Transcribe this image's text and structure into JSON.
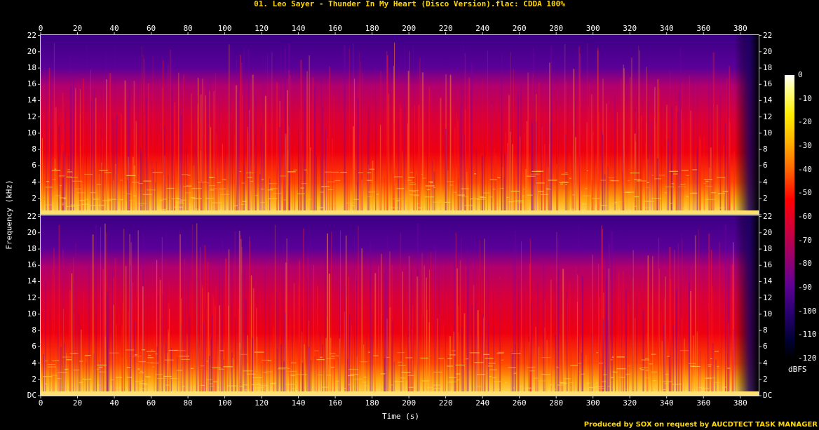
{
  "title": "01. Leo Sayer - Thunder In My Heart (Disco Version).flac: CDDA 100%",
  "credit": "Produced by SOX on request by AUCDTECT TASK MANAGER",
  "chart_data": {
    "type": "heatmap",
    "title": "01. Leo Sayer - Thunder In My Heart (Disco Version).flac: CDDA 100%",
    "xlabel": "Time (s)",
    "ylabel": "Frequency (kHz)",
    "colorbar_label": "dBFS",
    "xlim": [
      0,
      390
    ],
    "ylim": [
      0,
      22.05
    ],
    "x_ticks": [
      0,
      20,
      40,
      60,
      80,
      100,
      120,
      140,
      160,
      180,
      200,
      220,
      240,
      260,
      280,
      300,
      320,
      340,
      360,
      380
    ],
    "y_ticks": [
      "DC",
      "2",
      "4",
      "6",
      "8",
      "10",
      "12",
      "14",
      "16",
      "18",
      "20",
      "22"
    ],
    "colorbar_ticks": [
      "0",
      "-10",
      "-20",
      "-30",
      "-40",
      "-50",
      "-60",
      "-70",
      "-80",
      "-90",
      "-100",
      "-110",
      "-120"
    ],
    "colorbar_range": [
      -120,
      0
    ],
    "channels": [
      {
        "name": ""
      },
      {
        "name": ""
      }
    ]
  }
}
